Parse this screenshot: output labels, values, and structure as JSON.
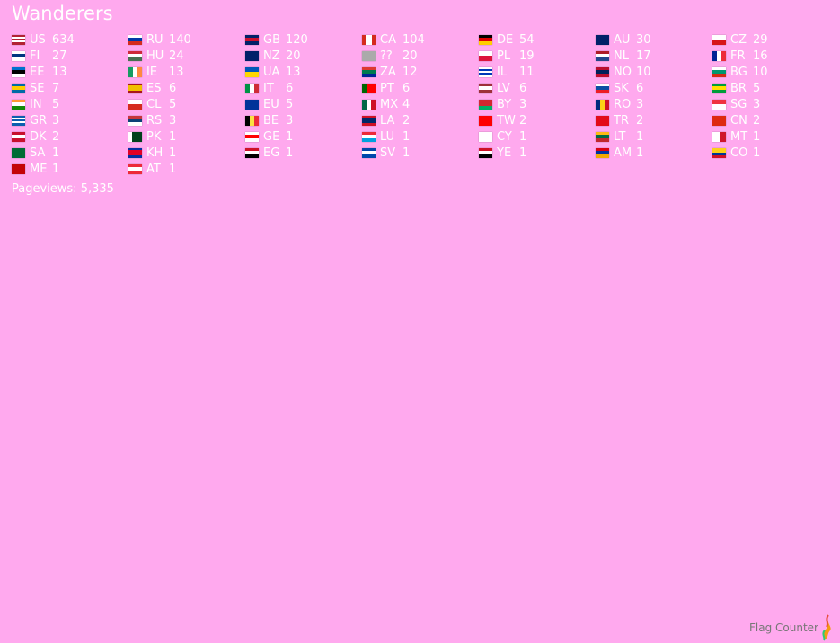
{
  "title": "Wanderers",
  "countries": [
    {
      "code": "US",
      "count": "634",
      "flag": {
        "dir": "h",
        "colors": [
          "#b22234",
          "#fff",
          "#b22234",
          "#fff",
          "#b22234"
        ]
      }
    },
    {
      "code": "RU",
      "count": "140",
      "flag": {
        "dir": "h",
        "colors": [
          "#fff",
          "#0039a6",
          "#d52b1e"
        ]
      }
    },
    {
      "code": "GB",
      "count": "120",
      "flag": {
        "dir": "h",
        "colors": [
          "#012169",
          "#c8102e",
          "#012169"
        ]
      }
    },
    {
      "code": "CA",
      "count": "104",
      "flag": {
        "dir": "v",
        "colors": [
          "#d52b1e",
          "#fff",
          "#fff",
          "#d52b1e"
        ]
      }
    },
    {
      "code": "DE",
      "count": "54",
      "flag": {
        "dir": "h",
        "colors": [
          "#000",
          "#dd0000",
          "#ffce00"
        ]
      }
    },
    {
      "code": "AU",
      "count": "30",
      "flag": {
        "dir": "h",
        "colors": [
          "#012169",
          "#012169"
        ]
      }
    },
    {
      "code": "CZ",
      "count": "29",
      "flag": {
        "dir": "h",
        "colors": [
          "#fff",
          "#d7141a"
        ]
      }
    },
    {
      "code": "FI",
      "count": "27",
      "flag": {
        "dir": "h",
        "colors": [
          "#fff",
          "#003580",
          "#fff"
        ]
      }
    },
    {
      "code": "HU",
      "count": "24",
      "flag": {
        "dir": "h",
        "colors": [
          "#ce2939",
          "#fff",
          "#477050"
        ]
      }
    },
    {
      "code": "NZ",
      "count": "20",
      "flag": {
        "dir": "h",
        "colors": [
          "#012169",
          "#012169"
        ]
      }
    },
    {
      "code": "??",
      "count": "20",
      "flag": {
        "dir": "h",
        "colors": [
          "#aaa"
        ]
      }
    },
    {
      "code": "PL",
      "count": "19",
      "flag": {
        "dir": "h",
        "colors": [
          "#fff",
          "#dc143c"
        ]
      }
    },
    {
      "code": "NL",
      "count": "17",
      "flag": {
        "dir": "h",
        "colors": [
          "#ae1c28",
          "#fff",
          "#21468b"
        ]
      }
    },
    {
      "code": "FR",
      "count": "16",
      "flag": {
        "dir": "v",
        "colors": [
          "#002395",
          "#fff",
          "#ed2939"
        ]
      }
    },
    {
      "code": "EE",
      "count": "13",
      "flag": {
        "dir": "h",
        "colors": [
          "#0072ce",
          "#000",
          "#fff"
        ]
      }
    },
    {
      "code": "IE",
      "count": "13",
      "flag": {
        "dir": "v",
        "colors": [
          "#169b62",
          "#fff",
          "#ff883e"
        ]
      }
    },
    {
      "code": "UA",
      "count": "13",
      "flag": {
        "dir": "h",
        "colors": [
          "#0057b7",
          "#ffd700"
        ]
      }
    },
    {
      "code": "ZA",
      "count": "12",
      "flag": {
        "dir": "h",
        "colors": [
          "#de3831",
          "#007a4d",
          "#002395"
        ]
      }
    },
    {
      "code": "IL",
      "count": "11",
      "flag": {
        "dir": "h",
        "colors": [
          "#fff",
          "#0038b8",
          "#fff",
          "#0038b8",
          "#fff"
        ]
      }
    },
    {
      "code": "NO",
      "count": "10",
      "flag": {
        "dir": "h",
        "colors": [
          "#ba0c2f",
          "#00205b",
          "#ba0c2f"
        ]
      }
    },
    {
      "code": "BG",
      "count": "10",
      "flag": {
        "dir": "h",
        "colors": [
          "#fff",
          "#00966e",
          "#d62612"
        ]
      }
    },
    {
      "code": "SE",
      "count": "7",
      "flag": {
        "dir": "h",
        "colors": [
          "#006aa7",
          "#fecc00",
          "#006aa7"
        ]
      }
    },
    {
      "code": "ES",
      "count": "6",
      "flag": {
        "dir": "h",
        "colors": [
          "#aa151b",
          "#f1bf00",
          "#f1bf00",
          "#aa151b"
        ]
      }
    },
    {
      "code": "IT",
      "count": "6",
      "flag": {
        "dir": "v",
        "colors": [
          "#009246",
          "#fff",
          "#ce2b37"
        ]
      }
    },
    {
      "code": "PT",
      "count": "6",
      "flag": {
        "dir": "v",
        "colors": [
          "#006600",
          "#ff0000",
          "#ff0000"
        ]
      }
    },
    {
      "code": "LV",
      "count": "6",
      "flag": {
        "dir": "h",
        "colors": [
          "#9e3039",
          "#fff",
          "#9e3039"
        ]
      }
    },
    {
      "code": "SK",
      "count": "6",
      "flag": {
        "dir": "h",
        "colors": [
          "#fff",
          "#0b4ea2",
          "#ee1c25"
        ]
      }
    },
    {
      "code": "BR",
      "count": "5",
      "flag": {
        "dir": "h",
        "colors": [
          "#009c3b",
          "#ffdf00",
          "#009c3b"
        ]
      }
    },
    {
      "code": "IN",
      "count": "5",
      "flag": {
        "dir": "h",
        "colors": [
          "#ff9933",
          "#fff",
          "#138808"
        ]
      }
    },
    {
      "code": "CL",
      "count": "5",
      "flag": {
        "dir": "h",
        "colors": [
          "#fff",
          "#d52b1e"
        ]
      }
    },
    {
      "code": "EU",
      "count": "5",
      "flag": {
        "dir": "h",
        "colors": [
          "#003399"
        ]
      }
    },
    {
      "code": "MX",
      "count": "4",
      "flag": {
        "dir": "v",
        "colors": [
          "#006847",
          "#fff",
          "#ce1126"
        ]
      }
    },
    {
      "code": "BY",
      "count": "3",
      "flag": {
        "dir": "h",
        "colors": [
          "#d22730",
          "#d22730",
          "#00af66"
        ]
      }
    },
    {
      "code": "RO",
      "count": "3",
      "flag": {
        "dir": "v",
        "colors": [
          "#002b7f",
          "#fcd116",
          "#ce1126"
        ]
      }
    },
    {
      "code": "SG",
      "count": "3",
      "flag": {
        "dir": "h",
        "colors": [
          "#ef3340",
          "#fff"
        ]
      }
    },
    {
      "code": "GR",
      "count": "3",
      "flag": {
        "dir": "h",
        "colors": [
          "#0d5eaf",
          "#fff",
          "#0d5eaf",
          "#fff",
          "#0d5eaf"
        ]
      }
    },
    {
      "code": "RS",
      "count": "3",
      "flag": {
        "dir": "h",
        "colors": [
          "#c6363c",
          "#0c4076",
          "#fff"
        ]
      }
    },
    {
      "code": "BE",
      "count": "3",
      "flag": {
        "dir": "v",
        "colors": [
          "#000",
          "#fae042",
          "#ed2939"
        ]
      }
    },
    {
      "code": "LA",
      "count": "2",
      "flag": {
        "dir": "h",
        "colors": [
          "#ce1126",
          "#002868",
          "#002868",
          "#ce1126"
        ]
      }
    },
    {
      "code": "TW",
      "count": "2",
      "flag": {
        "dir": "h",
        "colors": [
          "#fe0000",
          "#fe0000"
        ]
      }
    },
    {
      "code": "TR",
      "count": "2",
      "flag": {
        "dir": "h",
        "colors": [
          "#e30a17"
        ]
      }
    },
    {
      "code": "CN",
      "count": "2",
      "flag": {
        "dir": "h",
        "colors": [
          "#de2910"
        ]
      }
    },
    {
      "code": "DK",
      "count": "2",
      "flag": {
        "dir": "h",
        "colors": [
          "#c8102e",
          "#fff",
          "#c8102e"
        ]
      }
    },
    {
      "code": "PK",
      "count": "1",
      "flag": {
        "dir": "v",
        "colors": [
          "#fff",
          "#01411c",
          "#01411c",
          "#01411c"
        ]
      }
    },
    {
      "code": "GE",
      "count": "1",
      "flag": {
        "dir": "h",
        "colors": [
          "#fff",
          "#ff0000",
          "#fff"
        ]
      }
    },
    {
      "code": "LU",
      "count": "1",
      "flag": {
        "dir": "h",
        "colors": [
          "#ed2939",
          "#fff",
          "#00a1de"
        ]
      }
    },
    {
      "code": "CY",
      "count": "1",
      "flag": {
        "dir": "h",
        "colors": [
          "#fff"
        ]
      }
    },
    {
      "code": "LT",
      "count": "1",
      "flag": {
        "dir": "h",
        "colors": [
          "#fdb913",
          "#006a44",
          "#c1272d"
        ]
      }
    },
    {
      "code": "MT",
      "count": "1",
      "flag": {
        "dir": "v",
        "colors": [
          "#fff",
          "#cf142b"
        ]
      }
    },
    {
      "code": "SA",
      "count": "1",
      "flag": {
        "dir": "h",
        "colors": [
          "#006c35"
        ]
      }
    },
    {
      "code": "KH",
      "count": "1",
      "flag": {
        "dir": "h",
        "colors": [
          "#032ea1",
          "#e00025",
          "#e00025",
          "#032ea1"
        ]
      }
    },
    {
      "code": "EG",
      "count": "1",
      "flag": {
        "dir": "h",
        "colors": [
          "#ce1126",
          "#fff",
          "#000"
        ]
      }
    },
    {
      "code": "SV",
      "count": "1",
      "flag": {
        "dir": "h",
        "colors": [
          "#0047ab",
          "#fff",
          "#0047ab"
        ]
      }
    },
    {
      "code": "YE",
      "count": "1",
      "flag": {
        "dir": "h",
        "colors": [
          "#ce1126",
          "#fff",
          "#000"
        ]
      }
    },
    {
      "code": "AM",
      "count": "1",
      "flag": {
        "dir": "h",
        "colors": [
          "#d90012",
          "#0033a0",
          "#f2a800"
        ]
      }
    },
    {
      "code": "CO",
      "count": "1",
      "flag": {
        "dir": "h",
        "colors": [
          "#fcd116",
          "#fcd116",
          "#003893",
          "#ce1126"
        ]
      }
    },
    {
      "code": "ME",
      "count": "1",
      "flag": {
        "dir": "h",
        "colors": [
          "#c40308"
        ]
      }
    },
    {
      "code": "AT",
      "count": "1",
      "flag": {
        "dir": "h",
        "colors": [
          "#ed2939",
          "#fff",
          "#ed2939"
        ]
      }
    }
  ],
  "pageviews": "Pageviews: 5,335",
  "brand": "Flag Counter",
  "colors": {
    "background": "#ffa9ee",
    "text": "#ffffff",
    "brand_text": "#777777"
  }
}
